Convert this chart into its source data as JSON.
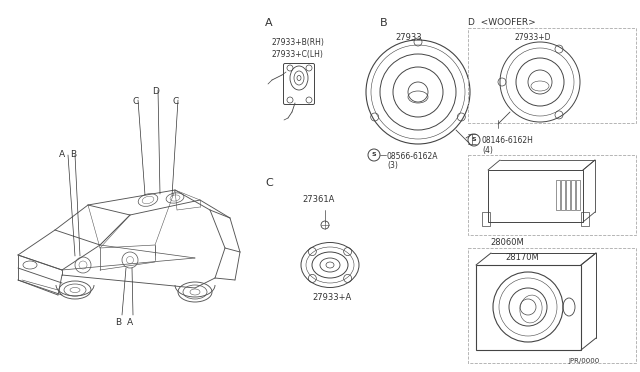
{
  "bg_color": "#ffffff",
  "line_color": "#444444",
  "text_color": "#333333",
  "fig_width": 6.4,
  "fig_height": 3.72,
  "dpi": 100,
  "labels": {
    "sec_A": "A",
    "sec_B": "B",
    "sec_C": "C",
    "sec_D": "D",
    "woofer": "＜WOOFER＞",
    "car_A": "A",
    "car_B": "B",
    "car_C": "C",
    "car_D": "D"
  },
  "parts": {
    "pn_A1": "27933+B(RH)",
    "pn_A2": "27933+C(LH)",
    "pn_B1": "27933",
    "pn_B2": "08566-6162A",
    "pn_B3": "(3)",
    "pn_C1": "27361A",
    "pn_C2": "27933+A",
    "pn_D1": "27933+D",
    "pn_D2": "08146-6162H",
    "pn_D3": "(4)",
    "pn_D4": "28060M",
    "pn_D5": "28170M",
    "footer": "JPR/0000"
  }
}
